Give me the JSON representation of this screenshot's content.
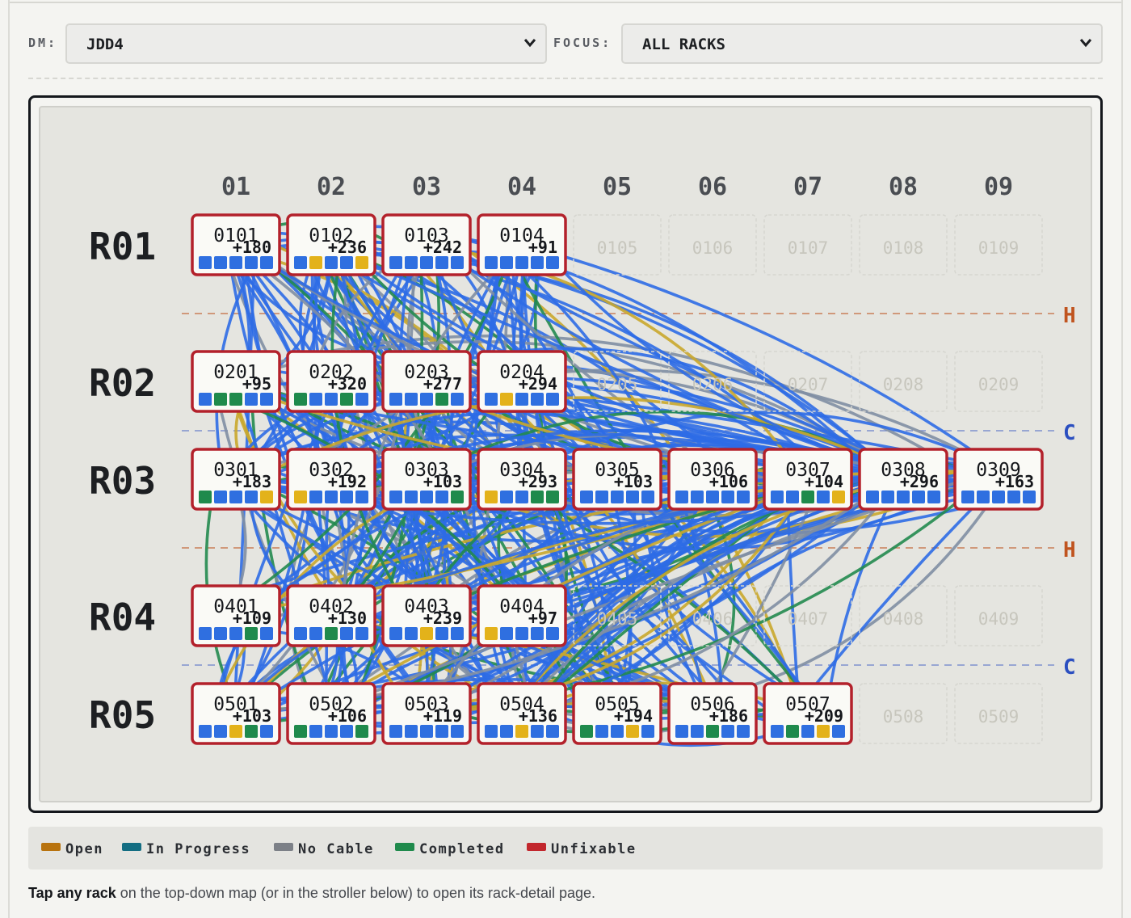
{
  "controls": {
    "dm_label": "DM:",
    "dm_value": "JDD4",
    "focus_label": "FOCUS:",
    "focus_value": "ALL RACKS"
  },
  "columns": [
    "01",
    "02",
    "03",
    "04",
    "05",
    "06",
    "07",
    "08",
    "09"
  ],
  "rows": [
    {
      "label": "R01",
      "racks": [
        {
          "id": "0101",
          "count": "+180",
          "status": [
            "blue",
            "blue",
            "blue",
            "blue",
            "blue"
          ]
        },
        {
          "id": "0102",
          "count": "+236",
          "status": [
            "blue",
            "yellow",
            "blue",
            "blue",
            "yellow"
          ]
        },
        {
          "id": "0103",
          "count": "+242",
          "status": [
            "blue",
            "blue",
            "blue",
            "blue",
            "blue"
          ]
        },
        {
          "id": "0104",
          "count": "+91",
          "status": [
            "blue",
            "blue",
            "blue",
            "blue",
            "blue"
          ]
        },
        {
          "id": "0105",
          "inactive": true
        },
        {
          "id": "0106",
          "inactive": true
        },
        {
          "id": "0107",
          "inactive": true
        },
        {
          "id": "0108",
          "inactive": true
        },
        {
          "id": "0109",
          "inactive": true
        }
      ]
    },
    {
      "label": "R02",
      "racks": [
        {
          "id": "0201",
          "count": "+95",
          "status": [
            "blue",
            "green",
            "green",
            "blue",
            "blue"
          ]
        },
        {
          "id": "0202",
          "count": "+320",
          "status": [
            "green",
            "blue",
            "blue",
            "green",
            "blue"
          ]
        },
        {
          "id": "0203",
          "count": "+277",
          "status": [
            "blue",
            "blue",
            "blue",
            "green",
            "blue"
          ]
        },
        {
          "id": "0204",
          "count": "+294",
          "status": [
            "blue",
            "yellow",
            "blue",
            "blue",
            "blue"
          ]
        },
        {
          "id": "0205",
          "inactive": true
        },
        {
          "id": "0206",
          "inactive": true
        },
        {
          "id": "0207",
          "inactive": true
        },
        {
          "id": "0208",
          "inactive": true
        },
        {
          "id": "0209",
          "inactive": true
        }
      ]
    },
    {
      "label": "R03",
      "racks": [
        {
          "id": "0301",
          "count": "+183",
          "status": [
            "green",
            "blue",
            "blue",
            "blue",
            "yellow"
          ]
        },
        {
          "id": "0302",
          "count": "+192",
          "status": [
            "yellow",
            "blue",
            "blue",
            "blue",
            "blue"
          ]
        },
        {
          "id": "0303",
          "count": "+103",
          "status": [
            "blue",
            "blue",
            "blue",
            "blue",
            "green"
          ]
        },
        {
          "id": "0304",
          "count": "+293",
          "status": [
            "yellow",
            "blue",
            "blue",
            "green",
            "green"
          ]
        },
        {
          "id": "0305",
          "count": "+103",
          "status": [
            "blue",
            "blue",
            "blue",
            "blue",
            "blue"
          ]
        },
        {
          "id": "0306",
          "count": "+106",
          "status": [
            "blue",
            "blue",
            "blue",
            "blue",
            "blue"
          ]
        },
        {
          "id": "0307",
          "count": "+104",
          "status": [
            "blue",
            "blue",
            "green",
            "blue",
            "yellow"
          ]
        },
        {
          "id": "0308",
          "count": "+296",
          "status": [
            "blue",
            "blue",
            "blue",
            "blue",
            "blue"
          ]
        },
        {
          "id": "0309",
          "count": "+163",
          "status": [
            "blue",
            "blue",
            "blue",
            "blue",
            "blue"
          ]
        }
      ]
    },
    {
      "label": "R04",
      "racks": [
        {
          "id": "0401",
          "count": "+109",
          "status": [
            "blue",
            "blue",
            "blue",
            "green",
            "blue"
          ]
        },
        {
          "id": "0402",
          "count": "+130",
          "status": [
            "blue",
            "blue",
            "green",
            "blue",
            "blue"
          ]
        },
        {
          "id": "0403",
          "count": "+239",
          "status": [
            "blue",
            "blue",
            "yellow",
            "blue",
            "blue"
          ]
        },
        {
          "id": "0404",
          "count": "+97",
          "status": [
            "yellow",
            "blue",
            "blue",
            "blue",
            "blue"
          ]
        },
        {
          "id": "0405",
          "inactive": true
        },
        {
          "id": "0406",
          "inactive": true
        },
        {
          "id": "0407",
          "inactive": true
        },
        {
          "id": "0408",
          "inactive": true
        },
        {
          "id": "0409",
          "inactive": true
        }
      ]
    },
    {
      "label": "R05",
      "racks": [
        {
          "id": "0501",
          "count": "+103",
          "status": [
            "blue",
            "blue",
            "yellow",
            "green",
            "blue"
          ]
        },
        {
          "id": "0502",
          "count": "+106",
          "status": [
            "green",
            "blue",
            "blue",
            "blue",
            "green"
          ]
        },
        {
          "id": "0503",
          "count": "+119",
          "status": [
            "blue",
            "blue",
            "blue",
            "blue",
            "blue"
          ]
        },
        {
          "id": "0504",
          "count": "+136",
          "status": [
            "blue",
            "blue",
            "yellow",
            "blue",
            "blue"
          ]
        },
        {
          "id": "0505",
          "count": "+194",
          "status": [
            "green",
            "blue",
            "blue",
            "yellow",
            "blue"
          ]
        },
        {
          "id": "0506",
          "count": "+186",
          "status": [
            "blue",
            "blue",
            "green",
            "blue",
            "blue"
          ]
        },
        {
          "id": "0507",
          "count": "+209",
          "status": [
            "blue",
            "green",
            "blue",
            "yellow",
            "blue"
          ]
        },
        {
          "id": "0508",
          "inactive": true
        },
        {
          "id": "0509",
          "inactive": true
        }
      ]
    }
  ],
  "aisles": [
    {
      "kind": "hot",
      "label": "H"
    },
    {
      "kind": "cold",
      "label": "C"
    },
    {
      "kind": "hot",
      "label": "H"
    },
    {
      "kind": "cold",
      "label": "C"
    }
  ],
  "colors": {
    "blue": "#2f6fe0",
    "green": "#1f8a4c",
    "yellow": "#e3b21a",
    "rack_border": "#b3212b",
    "cable_blue": "#2e6ce6",
    "cable_green": "#22894f",
    "cable_gold": "#c9a72c",
    "cable_gray": "#7f8ea3",
    "hot": "#c0541f",
    "cold": "#2b4fc0"
  },
  "legend": [
    {
      "label": "Open",
      "color": "#b8730f"
    },
    {
      "label": "In Progress",
      "color": "#136d82"
    },
    {
      "label": "No Cable",
      "color": "#7c8087"
    },
    {
      "label": "Completed",
      "color": "#1f8a4c"
    },
    {
      "label": "Unfixable",
      "color": "#c2272d"
    }
  ],
  "footnote": {
    "bold": "Tap any rack",
    "rest": " on the top-down map (or in the stroller below) to open its rack-detail page."
  }
}
